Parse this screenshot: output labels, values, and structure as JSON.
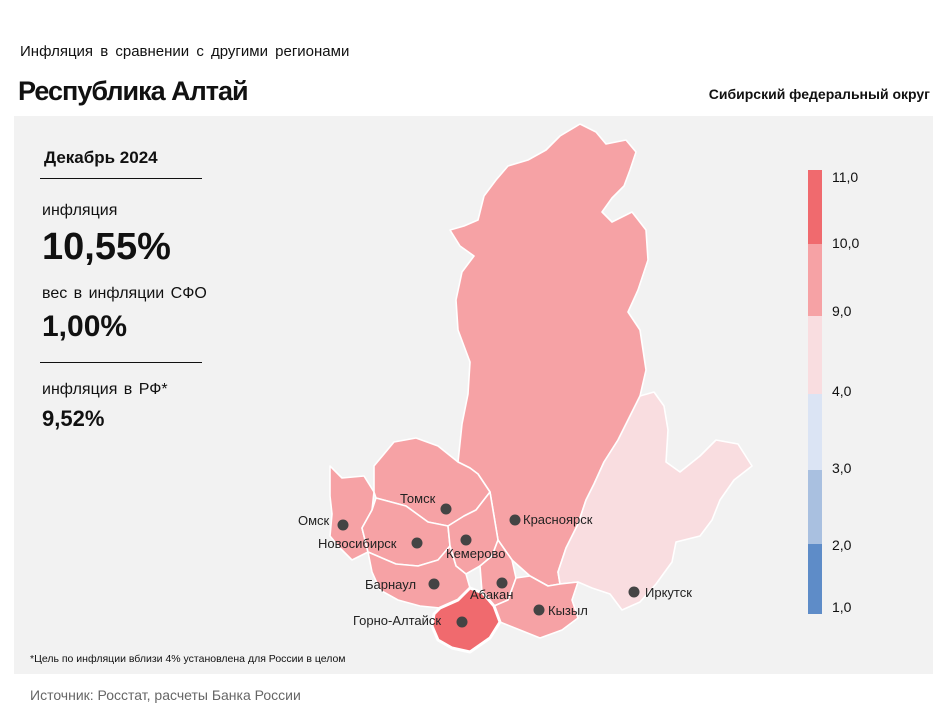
{
  "header": {
    "subtitle": "Инфляция в сравнении с другими регионами",
    "title": "Республика Алтай",
    "district": "Сибирский федеральный округ"
  },
  "stats": {
    "period": "Декабрь 2024",
    "inflation_label": "инфляция",
    "inflation_value": "10,55%",
    "weight_label": "вес в инфляции СФО",
    "weight_value": "1,00%",
    "rf_label": "инфляция в РФ*",
    "rf_value": "9,52%"
  },
  "cities": {
    "omsk": "Омск",
    "tomsk": "Томск",
    "novosibirsk": "Новосибирск",
    "kemerovo": "Кемерово",
    "krasnoyarsk": "Красноярск",
    "barnaul": "Барнаул",
    "abakan": "Абакан",
    "gorno": "Горно-Алтайск",
    "kyzyl": "Кызыл",
    "irkutsk": "Иркутск"
  },
  "legend": {
    "ticks": [
      "11,0",
      "10,0",
      "9,0",
      "4,0",
      "3,0",
      "2,0",
      "1,0"
    ],
    "colors": {
      "c10_11": "#f06a6e",
      "c9_10": "#f6a2a5",
      "c4_9": "#f9dde0",
      "c3_4": "#dbe4f4",
      "c2_3": "#a9c0e0",
      "c1_2": "#5e8cc8"
    }
  },
  "footnote": "*Цель по инфляции вблизи 4% установлена для России в целом",
  "source": "Источник: Росстат, расчеты Банка России"
}
